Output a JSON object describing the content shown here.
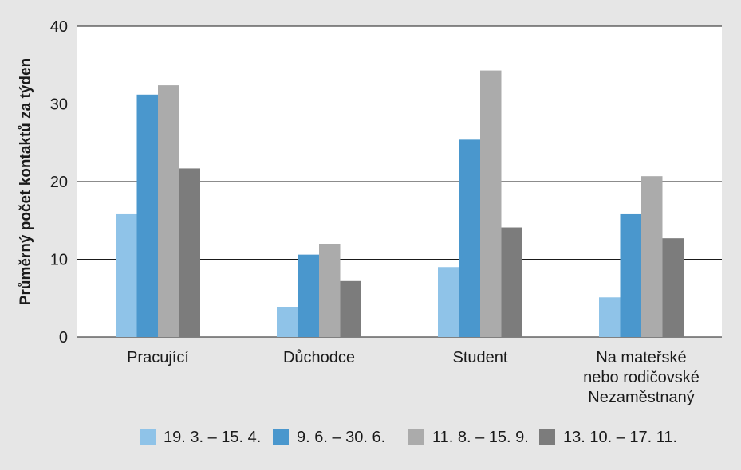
{
  "chart_data": {
    "type": "bar",
    "ylabel": "Průměrný počet kontaktů za týden",
    "xlabel": "",
    "ylim": [
      0,
      40
    ],
    "yticks": [
      0,
      10,
      20,
      30,
      40
    ],
    "grid": true,
    "legend_position": "bottom",
    "categories": [
      [
        "Pracující"
      ],
      [
        "Důchodce"
      ],
      [
        "Student"
      ],
      [
        "Na mateřské",
        "nebo rodičovské",
        "Nezaměstnaný"
      ]
    ],
    "series": [
      {
        "name": "19. 3. – 15. 4.",
        "color": "#8fc3e8",
        "values": [
          15.8,
          3.8,
          9.0,
          5.1
        ]
      },
      {
        "name": "9. 6. – 30. 6.",
        "color": "#4a97cd",
        "values": [
          31.2,
          10.6,
          25.4,
          15.8
        ]
      },
      {
        "name": "11. 8. – 15. 9.",
        "color": "#ababab",
        "values": [
          32.4,
          12.0,
          34.3,
          20.7
        ]
      },
      {
        "name": "13. 10. – 17. 11.",
        "color": "#7c7c7c",
        "values": [
          21.7,
          7.2,
          14.1,
          12.7
        ]
      }
    ]
  }
}
